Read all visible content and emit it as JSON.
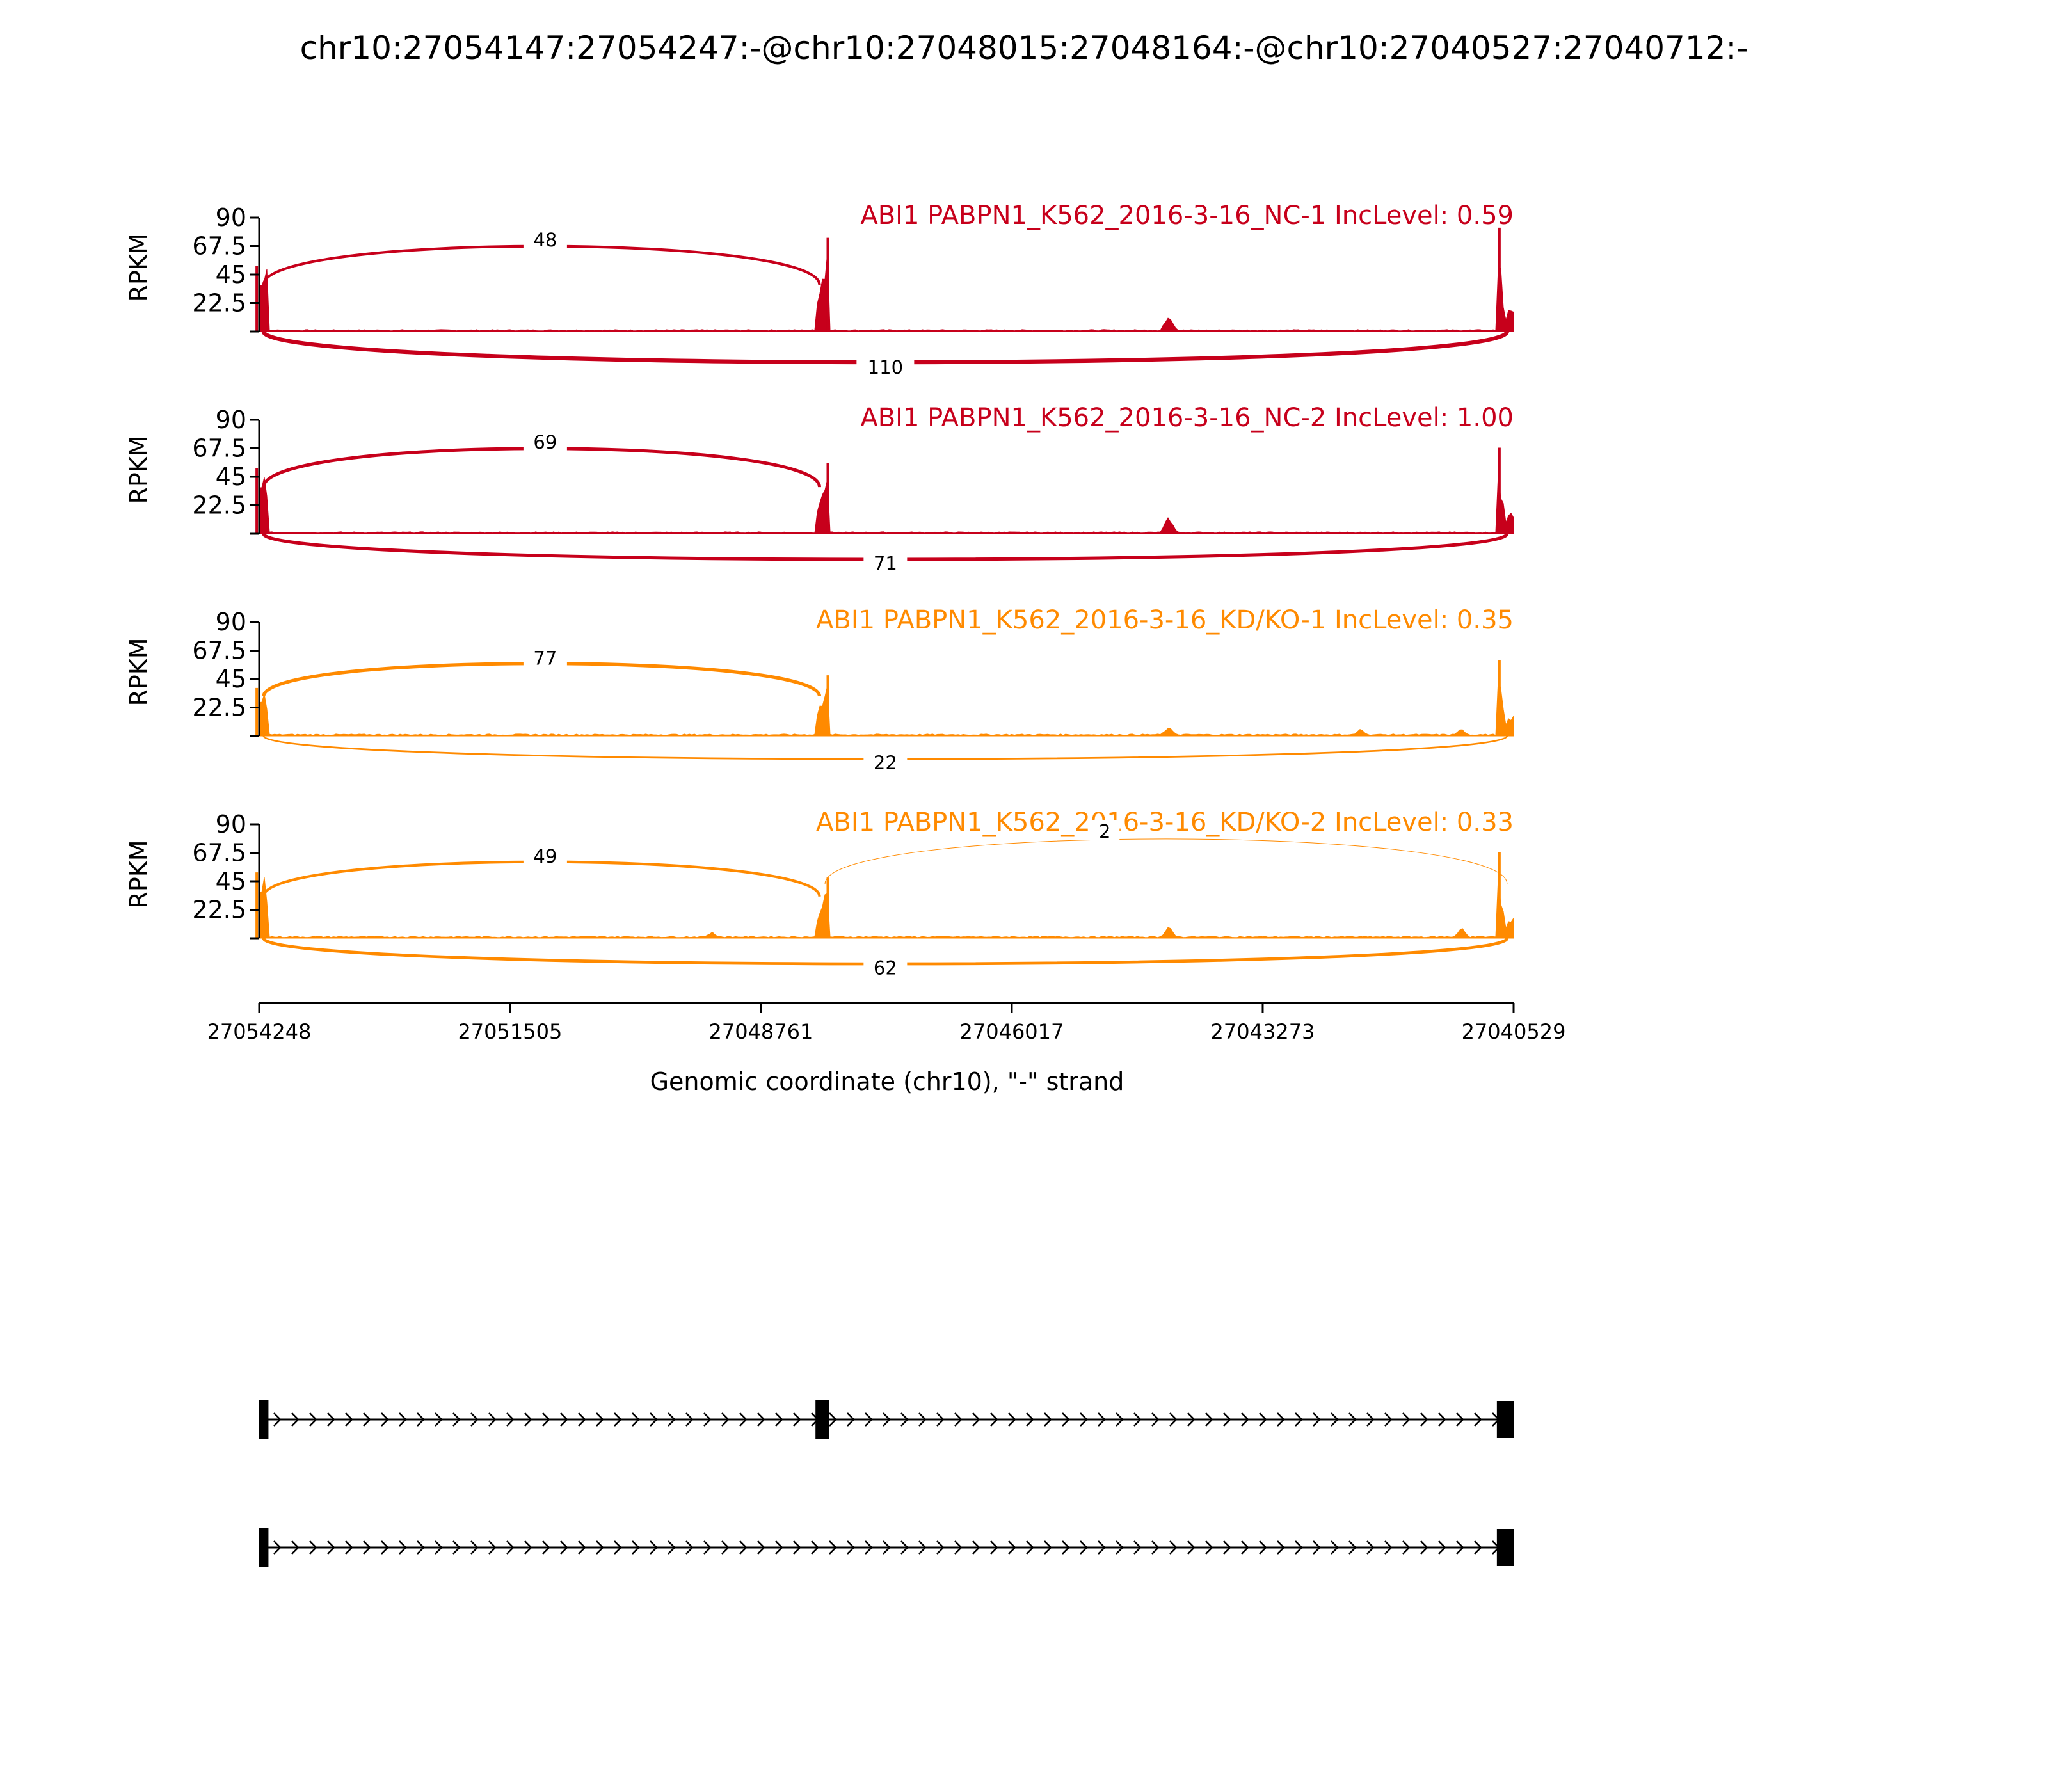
{
  "chart_data": {
    "type": "area",
    "title": "chr10:27054147:27054247:-@chr10:27048015:27048164:-@chr10:27040527:27040712:-",
    "xlabel": "Genomic coordinate (chr10), \"-\" strand",
    "ylabel": "RPKM",
    "xlim": [
      27054248,
      27040529
    ],
    "x_ticks": [
      "27054248",
      "27051505",
      "27048761",
      "27046017",
      "27043273",
      "27040529"
    ],
    "ylim": [
      0,
      90
    ],
    "y_ticks": [
      "22.5",
      "45",
      "67.5",
      "90"
    ],
    "grid": false,
    "exons": {
      "upstream": [
        27054247,
        27054147
      ],
      "skipped": [
        27048164,
        27048015
      ],
      "downstream": [
        27040712,
        27040527
      ]
    },
    "colors": {
      "nc": "#c7001b",
      "kd": "#ff8a00"
    },
    "tracks": [
      {
        "name": "ABI1 PABPN1_K562_2016-3-16_NC-1 IncLevel: 0.59",
        "color_key": "nc",
        "exon_peaks": {
          "upstream": 52,
          "skipped": 74,
          "downstream": 82
        },
        "intron_bumps": [
          {
            "x": 27044300,
            "y": 16
          }
        ],
        "junctions": [
          {
            "from": 27054200,
            "to": 27048120,
            "count": "48",
            "side": "above",
            "height": 67,
            "label_x": 27051120
          },
          {
            "from": 27054200,
            "to": 27040600,
            "count": "110",
            "side": "below",
            "height": -24,
            "label_x": 27047400
          }
        ]
      },
      {
        "name": "ABI1 PABPN1_K562_2016-3-16_NC-2 IncLevel: 1.00",
        "color_key": "nc",
        "exon_peaks": {
          "upstream": 52,
          "skipped": 56,
          "downstream": 68
        },
        "intron_bumps": [
          {
            "x": 27044300,
            "y": 15
          }
        ],
        "junctions": [
          {
            "from": 27054200,
            "to": 27048120,
            "count": "69",
            "side": "above",
            "height": 67,
            "label_x": 27051120
          },
          {
            "from": 27054200,
            "to": 27040600,
            "count": "71",
            "side": "below",
            "height": -20,
            "label_x": 27047400
          }
        ]
      },
      {
        "name": "ABI1 PABPN1_K562_2016-3-16_KD/KO-1 IncLevel: 0.35",
        "color_key": "kd",
        "exon_peaks": {
          "upstream": 38,
          "skipped": 48,
          "downstream": 60
        },
        "intron_bumps": [
          {
            "x": 27044300,
            "y": 8
          },
          {
            "x": 27042200,
            "y": 6
          },
          {
            "x": 27041100,
            "y": 6
          }
        ],
        "junctions": [
          {
            "from": 27054200,
            "to": 27048120,
            "count": "77",
            "side": "above",
            "height": 57,
            "label_x": 27051120
          },
          {
            "from": 27054200,
            "to": 27040600,
            "count": "22",
            "side": "below",
            "height": -18,
            "label_x": 27047400
          }
        ]
      },
      {
        "name": "ABI1 PABPN1_K562_2016-3-16_KD/KO-2 IncLevel: 0.33",
        "color_key": "kd",
        "exon_peaks": {
          "upstream": 52,
          "skipped": 48,
          "downstream": 68
        },
        "intron_bumps": [
          {
            "x": 27044300,
            "y": 10
          },
          {
            "x": 27041100,
            "y": 9
          },
          {
            "x": 27049300,
            "y": 6
          }
        ],
        "junctions": [
          {
            "from": 27054200,
            "to": 27048120,
            "count": "49",
            "side": "above",
            "height": 60,
            "label_x": 27051120
          },
          {
            "from": 27048060,
            "to": 27040600,
            "count": "2",
            "side": "above",
            "height": 78,
            "label_x": 27045000
          },
          {
            "from": 27054200,
            "to": 27040600,
            "count": "62",
            "side": "below",
            "height": -20,
            "label_x": 27047400
          }
        ]
      }
    ],
    "transcripts": [
      {
        "exons": [
          [
            27054248,
            27054147
          ],
          [
            27048164,
            27048015
          ],
          [
            27040712,
            27040529
          ]
        ]
      },
      {
        "exons": [
          [
            27054248,
            27054147
          ],
          [
            27040712,
            27040529
          ]
        ]
      }
    ]
  }
}
